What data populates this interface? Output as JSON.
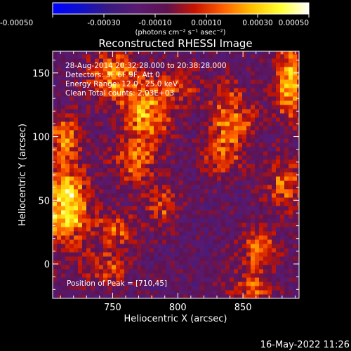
{
  "chart_data": {
    "type": "heatmap",
    "title": "Reconstructed RHESSI Image",
    "xlabel": "Heliocentric X (arcsec)",
    "ylabel": "Heliocentric Y (arcsec)",
    "xlim": [
      704,
      893
    ],
    "ylim": [
      -27,
      167
    ],
    "xticks": [
      750,
      800,
      850
    ],
    "yticks": [
      0,
      50,
      100,
      150
    ],
    "colorbar": {
      "label": "(photons cm⁻² s⁻¹ asec⁻²)",
      "range": [
        -0.0005,
        0.0005
      ],
      "ticks": [
        "-0.00050",
        "-0.00030",
        "-0.00010",
        "0.00010",
        "0.00030",
        "0.00050"
      ],
      "colors": [
        "#0000ff",
        "#1010c8",
        "#3a1a80",
        "#5a1a70",
        "#5e1250",
        "#c81400",
        "#ff6000",
        "#ffc000",
        "#ffff30",
        "#ffffff"
      ]
    },
    "annotations": [
      "28-Aug-2014 20:32:28.000 to 20:38:28.000",
      "Detectors: 3F 6F 9F, Att 0",
      "Energy Range: 12.0 - 25.0 keV",
      "Clean    Total counts: 2.03E+03"
    ],
    "peak_label": "Position of Peak = [710,45]",
    "peak": [
      710,
      45
    ],
    "sources": [
      {
        "x": 712,
        "y": 45,
        "intensity": 0.0005,
        "sx": 12,
        "sy": 22
      },
      {
        "x": 712,
        "y": 100,
        "intensity": 0.0003,
        "sx": 8,
        "sy": 12
      },
      {
        "x": 750,
        "y": 145,
        "intensity": 0.00035,
        "sx": 14,
        "sy": 14
      },
      {
        "x": 775,
        "y": 115,
        "intensity": 0.00035,
        "sx": 12,
        "sy": 18
      },
      {
        "x": 765,
        "y": 80,
        "intensity": 0.00025,
        "sx": 12,
        "sy": 12
      },
      {
        "x": 785,
        "y": 45,
        "intensity": 0.00022,
        "sx": 10,
        "sy": 12
      },
      {
        "x": 750,
        "y": 25,
        "intensity": 0.00022,
        "sx": 12,
        "sy": 10
      },
      {
        "x": 745,
        "y": -5,
        "intensity": 0.0002,
        "sx": 12,
        "sy": 10
      },
      {
        "x": 800,
        "y": 140,
        "intensity": 0.0002,
        "sx": 10,
        "sy": 12
      },
      {
        "x": 840,
        "y": 110,
        "intensity": 0.0003,
        "sx": 12,
        "sy": 20
      },
      {
        "x": 885,
        "y": 140,
        "intensity": 0.0004,
        "sx": 8,
        "sy": 20
      },
      {
        "x": 880,
        "y": 60,
        "intensity": 0.00025,
        "sx": 10,
        "sy": 15
      },
      {
        "x": 860,
        "y": 10,
        "intensity": 0.0003,
        "sx": 10,
        "sy": 12
      },
      {
        "x": 855,
        "y": -20,
        "intensity": 0.00025,
        "sx": 12,
        "sy": 8
      },
      {
        "x": 830,
        "y": 80,
        "intensity": 0.00015,
        "sx": 10,
        "sy": 10
      }
    ]
  },
  "footer": {
    "date": "16-May-2022 11:26"
  }
}
